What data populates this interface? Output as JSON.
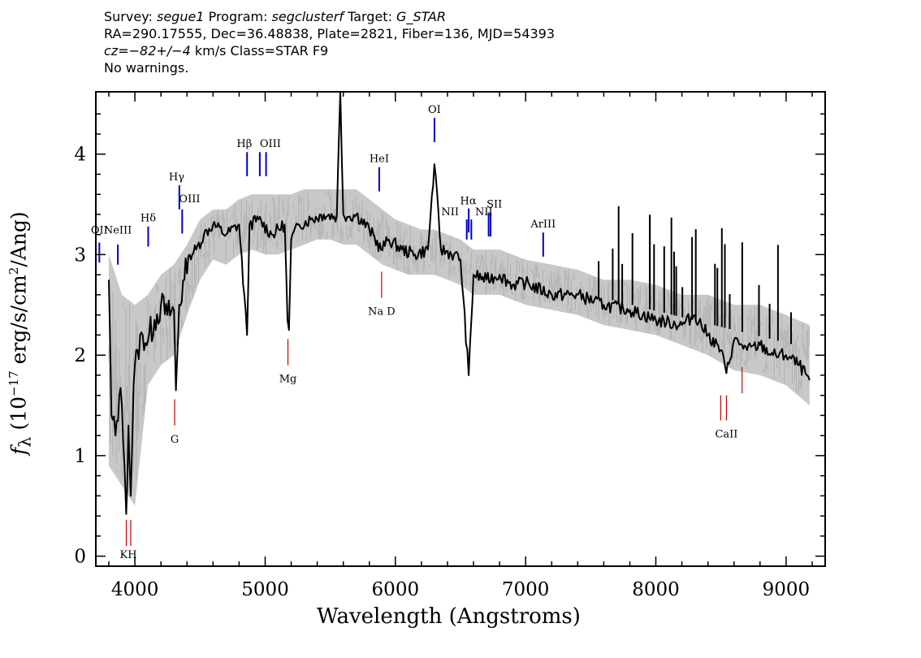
{
  "header": {
    "survey_label": "Survey:",
    "survey": "segue1",
    "program_label": "Program:",
    "program": "segclusterf",
    "target_label": "Target:",
    "target": "G_STAR",
    "line2": "RA=290.17555, Dec=36.48838, Plate=2821, Fiber=136, MJD=54393",
    "cz_label": "cz=",
    "cz_value": "−82+/−4",
    "cz_rest": " km/s Class=STAR F9",
    "line4": "No warnings."
  },
  "chart_data": {
    "type": "line",
    "xlabel": "Wavelength (Angstroms)",
    "ylabel_prefix": "f",
    "ylabel_sub": "λ",
    "ylabel_main": " (10",
    "ylabel_exp": "−17",
    "ylabel_mid": " erg/s/cm",
    "ylabel_exp2": "2",
    "ylabel_end": "/Ang)",
    "xlim": [
      3700,
      9300
    ],
    "ylim": [
      -0.1,
      4.62
    ],
    "x_ticks": [
      4000,
      5000,
      6000,
      7000,
      8000,
      9000
    ],
    "y_ticks": [
      0,
      1,
      2,
      3,
      4
    ],
    "series": [
      {
        "role": "flux",
        "color": "#000000",
        "x": [
          3800,
          3820,
          3850,
          3880,
          3900,
          3920,
          3933,
          3950,
          3968,
          3990,
          4020,
          4060,
          4101,
          4150,
          4200,
          4250,
          4300,
          4315,
          4340,
          4380,
          4420,
          4470,
          4530,
          4600,
          4700,
          4800,
          4861,
          4880,
          4950,
          5050,
          5150,
          5172,
          5183,
          5200,
          5260,
          5350,
          5450,
          5550,
          5577,
          5600,
          5650,
          5700,
          5800,
          5890,
          5950,
          6050,
          6150,
          6250,
          6300,
          6350,
          6450,
          6500,
          6563,
          6600,
          6700,
          6800,
          6900,
          7000,
          7200,
          7400,
          7600,
          7800,
          8000,
          8200,
          8300,
          8400,
          8498,
          8542,
          8600,
          8662,
          8700,
          8800,
          8900,
          9000,
          9100,
          9180
        ],
        "y": [
          2.75,
          1.4,
          1.2,
          1.6,
          1.5,
          0.9,
          0.42,
          1.3,
          0.6,
          1.7,
          2.05,
          2.2,
          2.15,
          2.35,
          2.5,
          2.4,
          2.45,
          1.65,
          2.5,
          2.75,
          3.0,
          3.05,
          3.2,
          3.3,
          3.2,
          3.3,
          2.2,
          3.3,
          3.35,
          3.2,
          3.3,
          2.35,
          2.25,
          3.15,
          3.3,
          3.35,
          3.4,
          3.38,
          4.62,
          3.4,
          3.38,
          3.4,
          3.25,
          3.05,
          3.15,
          3.05,
          3.0,
          3.05,
          3.9,
          3.05,
          3.0,
          2.95,
          1.8,
          2.8,
          2.75,
          2.8,
          2.7,
          2.72,
          2.6,
          2.6,
          2.5,
          2.45,
          2.35,
          2.3,
          2.4,
          2.2,
          2.05,
          1.82,
          2.15,
          2.1,
          2.05,
          2.1,
          2.0,
          2.0,
          1.9,
          1.75
        ]
      },
      {
        "role": "error",
        "color": "#c8c8c8",
        "x": [
          3800,
          3900,
          4000,
          4100,
          4200,
          4300,
          4400,
          4500,
          4600,
          4700,
          4800,
          4900,
          5000,
          5100,
          5200,
          5300,
          5400,
          5500,
          5600,
          5700,
          5800,
          5900,
          6000,
          6100,
          6200,
          6300,
          6400,
          6500,
          6600,
          6700,
          6800,
          6900,
          7000,
          7200,
          7400,
          7600,
          7800,
          8000,
          8200,
          8400,
          8600,
          8800,
          9000,
          9180
        ],
        "y_lo": [
          0.9,
          0.7,
          0.5,
          1.7,
          1.9,
          2.0,
          2.4,
          2.75,
          2.95,
          2.9,
          3.0,
          3.05,
          3.0,
          3.0,
          3.05,
          3.1,
          3.15,
          3.15,
          3.1,
          3.1,
          3.0,
          2.9,
          2.85,
          2.8,
          2.8,
          2.8,
          2.75,
          2.7,
          2.6,
          2.6,
          2.6,
          2.55,
          2.5,
          2.45,
          2.4,
          2.3,
          2.25,
          2.2,
          2.1,
          2.0,
          1.85,
          1.8,
          1.7,
          1.5
        ],
        "y_hi": [
          3.0,
          2.6,
          2.5,
          2.6,
          2.8,
          2.9,
          3.1,
          3.35,
          3.45,
          3.45,
          3.55,
          3.6,
          3.6,
          3.6,
          3.6,
          3.65,
          3.65,
          3.65,
          3.65,
          3.65,
          3.55,
          3.45,
          3.35,
          3.3,
          3.25,
          3.25,
          3.2,
          3.15,
          3.05,
          3.05,
          3.05,
          3.0,
          2.95,
          2.9,
          2.85,
          2.75,
          2.75,
          2.7,
          2.6,
          2.6,
          2.5,
          2.5,
          2.4,
          2.3
        ]
      }
    ],
    "emission_lines": [
      {
        "label": "OII",
        "x": 3727,
        "y0": 2.92,
        "y1": 3.12
      },
      {
        "label": "NeIII",
        "x": 3869,
        "y0": 2.9,
        "y1": 3.1
      },
      {
        "label": "Hδ",
        "x": 4102,
        "y0": 3.08,
        "y1": 3.28
      },
      {
        "label": "OIII",
        "x": 4363,
        "y0": 3.21,
        "y1": 3.45
      },
      {
        "label": "Hγ",
        "x": 4341,
        "y0": 3.45,
        "y1": 3.69
      },
      {
        "label": "Hβ",
        "x": 4861,
        "y0": 3.78,
        "y1": 4.02
      },
      {
        "label": "OIII",
        "x": 4959,
        "y0": 3.78,
        "y1": 4.02
      },
      {
        "label": "OIII",
        "x": 5007,
        "y0": 3.78,
        "y1": 4.02
      },
      {
        "label": "HeI",
        "x": 5876,
        "y0": 3.63,
        "y1": 3.87
      },
      {
        "label": "OI",
        "x": 6300,
        "y0": 4.12,
        "y1": 4.36
      },
      {
        "label": "NII",
        "x": 6548,
        "y0": 3.15,
        "y1": 3.35
      },
      {
        "label": "Hα",
        "x": 6563,
        "y0": 3.22,
        "y1": 3.46
      },
      {
        "label": "NII",
        "x": 6583,
        "y0": 3.15,
        "y1": 3.35
      },
      {
        "label": "SII",
        "x": 6716,
        "y0": 3.18,
        "y1": 3.42
      },
      {
        "label": "SII",
        "x": 6731,
        "y0": 3.18,
        "y1": 3.42
      },
      {
        "label": "ArIII",
        "x": 7135,
        "y0": 2.98,
        "y1": 3.22
      }
    ],
    "emission_labels": [
      {
        "text": "OII",
        "x": 3727,
        "y": 3.21
      },
      {
        "text": "NeIII",
        "x": 3869,
        "y": 3.21
      },
      {
        "text": "Hδ",
        "x": 4102,
        "y": 3.33
      },
      {
        "text": "OIII",
        "x": 4420,
        "y": 3.52
      },
      {
        "text": "Hγ",
        "x": 4320,
        "y": 3.74
      },
      {
        "text": "Hβ",
        "x": 4840,
        "y": 4.07
      },
      {
        "text": "OIII",
        "x": 5040,
        "y": 4.07
      },
      {
        "text": "HeI",
        "x": 5876,
        "y": 3.92
      },
      {
        "text": "OI",
        "x": 6300,
        "y": 4.41
      },
      {
        "text": "NII",
        "x": 6420,
        "y": 3.39
      },
      {
        "text": "Hα",
        "x": 6560,
        "y": 3.5
      },
      {
        "text": "NII",
        "x": 6680,
        "y": 3.39
      },
      {
        "text": "SII",
        "x": 6760,
        "y": 3.47
      },
      {
        "text": "ArIII",
        "x": 7135,
        "y": 3.27
      }
    ],
    "absorption_lines": [
      {
        "label": "K",
        "x": 3934,
        "y0": 0.1,
        "y1": 0.36
      },
      {
        "label": "H",
        "x": 3968,
        "y0": 0.1,
        "y1": 0.36
      },
      {
        "label": "G",
        "x": 4305,
        "y0": 1.3,
        "y1": 1.56
      },
      {
        "label": "Mg",
        "x": 5175,
        "y0": 1.9,
        "y1": 2.16
      },
      {
        "label": "Na D",
        "x": 5894,
        "y0": 2.57,
        "y1": 2.83
      },
      {
        "label": "CaII",
        "x": 8498,
        "y0": 1.35,
        "y1": 1.6
      },
      {
        "label": "CaII",
        "x": 8542,
        "y0": 1.35,
        "y1": 1.6
      },
      {
        "label": "CaII",
        "x": 8662,
        "y0": 1.62,
        "y1": 1.88
      }
    ],
    "absorption_labels": [
      {
        "text": "KH",
        "x": 3950,
        "y": -0.02
      },
      {
        "text": "G",
        "x": 4305,
        "y": 1.13
      },
      {
        "text": "Mg",
        "x": 5175,
        "y": 1.73
      },
      {
        "text": "Na D",
        "x": 5894,
        "y": 2.4
      },
      {
        "text": "CaII",
        "x": 8542,
        "y": 1.18
      }
    ],
    "emission_color": "#0000cc",
    "absorption_color": "#cc0000"
  }
}
